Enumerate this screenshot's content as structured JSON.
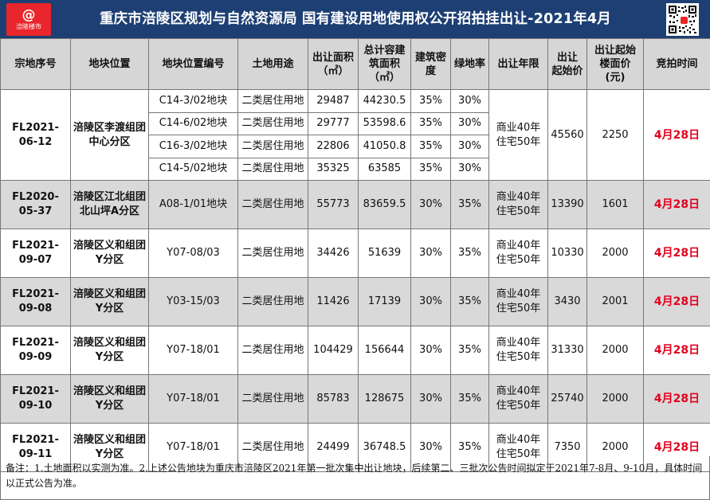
{
  "header": {
    "logo_mark": "@",
    "logo_text": "涪陵楼市",
    "title": "重庆市涪陵区规划与自然资源局 国有建设用地使用权公开招拍挂出让-2021年4月",
    "qr_icon": "qr-code-icon"
  },
  "table": {
    "headers": {
      "col1": "宗地序号",
      "col2": "地块位置",
      "col3": "地块位置编号",
      "col4": "土地用途",
      "col5a": "出让面积",
      "col5b": "（㎡）",
      "col6a": "总计容建",
      "col6b": "筑面积",
      "col6c": "（㎡）",
      "col7a": "建筑密",
      "col7b": "度",
      "col8": "绿地率",
      "col9": "出让年限",
      "col10a": "出让",
      "col10b": "起始价",
      "col11a": "出让起始",
      "col11b": "楼面价",
      "col11c": "(元)",
      "col12": "竞拍时间"
    },
    "groups": [
      {
        "id": "FL2021-06-12",
        "location": "涪陵区李渡组团中心分区",
        "term": "商业40年住宅50年",
        "start_price": "45560",
        "floor_price": "2250",
        "auction": "4月28日",
        "shaded": false,
        "rows": [
          {
            "code": "C14-3/02地块",
            "use": "二类居住用地",
            "area": "29487",
            "gfa": "44230.5",
            "density": "35%",
            "green": "30%"
          },
          {
            "code": "C14-6/02地块",
            "use": "二类居住用地",
            "area": "29777",
            "gfa": "53598.6",
            "density": "35%",
            "green": "30%"
          },
          {
            "code": "C16-3/02地块",
            "use": "二类居住用地",
            "area": "22806",
            "gfa": "41050.8",
            "density": "35%",
            "green": "30%"
          },
          {
            "code": "C14-5/02地块",
            "use": "二类居住用地",
            "area": "35325",
            "gfa": "63585",
            "density": "35%",
            "green": "30%"
          }
        ]
      },
      {
        "id": "FL2020-05-37",
        "location": "涪陵区江北组团北山坪A分区",
        "term": "商业40年住宅50年",
        "start_price": "13390",
        "floor_price": "1601",
        "auction": "4月28日",
        "shaded": true,
        "rows": [
          {
            "code": "A08-1/01地块",
            "use": "二类居住用地",
            "area": "55773",
            "gfa": "83659.5",
            "density": "30%",
            "green": "35%"
          }
        ]
      },
      {
        "id": "FL2021-09-07",
        "location": "涪陵区义和组团Y分区",
        "term": "商业40年住宅50年",
        "start_price": "10330",
        "floor_price": "2000",
        "auction": "4月28日",
        "shaded": false,
        "rows": [
          {
            "code": "Y07-08/03",
            "use": "二类居住用地",
            "area": "34426",
            "gfa": "51639",
            "density": "30%",
            "green": "35%"
          }
        ]
      },
      {
        "id": "FL2021-09-08",
        "location": "涪陵区义和组团Y分区",
        "term": "商业40年住宅50年",
        "start_price": "3430",
        "floor_price": "2001",
        "auction": "4月28日",
        "shaded": true,
        "rows": [
          {
            "code": "Y03-15/03",
            "use": "二类居住用地",
            "area": "11426",
            "gfa": "17139",
            "density": "30%",
            "green": "35%"
          }
        ]
      },
      {
        "id": "FL2021-09-09",
        "location": "涪陵区义和组团Y分区",
        "term": "商业40年住宅50年",
        "start_price": "31330",
        "floor_price": "2000",
        "auction": "4月28日",
        "shaded": false,
        "rows": [
          {
            "code": "Y07-18/01",
            "use": "二类居住用地",
            "area": "104429",
            "gfa": "156644",
            "density": "30%",
            "green": "35%"
          }
        ]
      },
      {
        "id": "FL2021-09-10",
        "location": "涪陵区义和组团Y分区",
        "term": "商业40年住宅50年",
        "start_price": "25740",
        "floor_price": "2000",
        "auction": "4月28日",
        "shaded": true,
        "rows": [
          {
            "code": "Y07-18/01",
            "use": "二类居住用地",
            "area": "85783",
            "gfa": "128675",
            "density": "30%",
            "green": "35%"
          }
        ]
      },
      {
        "id": "FL2021-09-11",
        "location": "涪陵区义和组团Y分区",
        "term": "商业40年住宅50年",
        "start_price": "7350",
        "floor_price": "2000",
        "auction": "4月28日",
        "shaded": false,
        "rows": [
          {
            "code": "Y07-18/01",
            "use": "二类居住用地",
            "area": "24499",
            "gfa": "36748.5",
            "density": "30%",
            "green": "35%"
          }
        ]
      }
    ]
  },
  "note": "备注：1.土地面积以实测为准。2.上述公告地块为重庆市涪陵区2021年第一批次集中出让地块，后续第二、三批次公告时间拟定于2021年7-8月、9-10月，具体时间以正式公告为准。",
  "colors": {
    "header_bg": "#1d3f73",
    "logo_bg": "#e8262b",
    "accent_red": "#e1001e",
    "head_row_bg": "#d6d6d6",
    "shade_row_bg": "#d9d9d9"
  }
}
